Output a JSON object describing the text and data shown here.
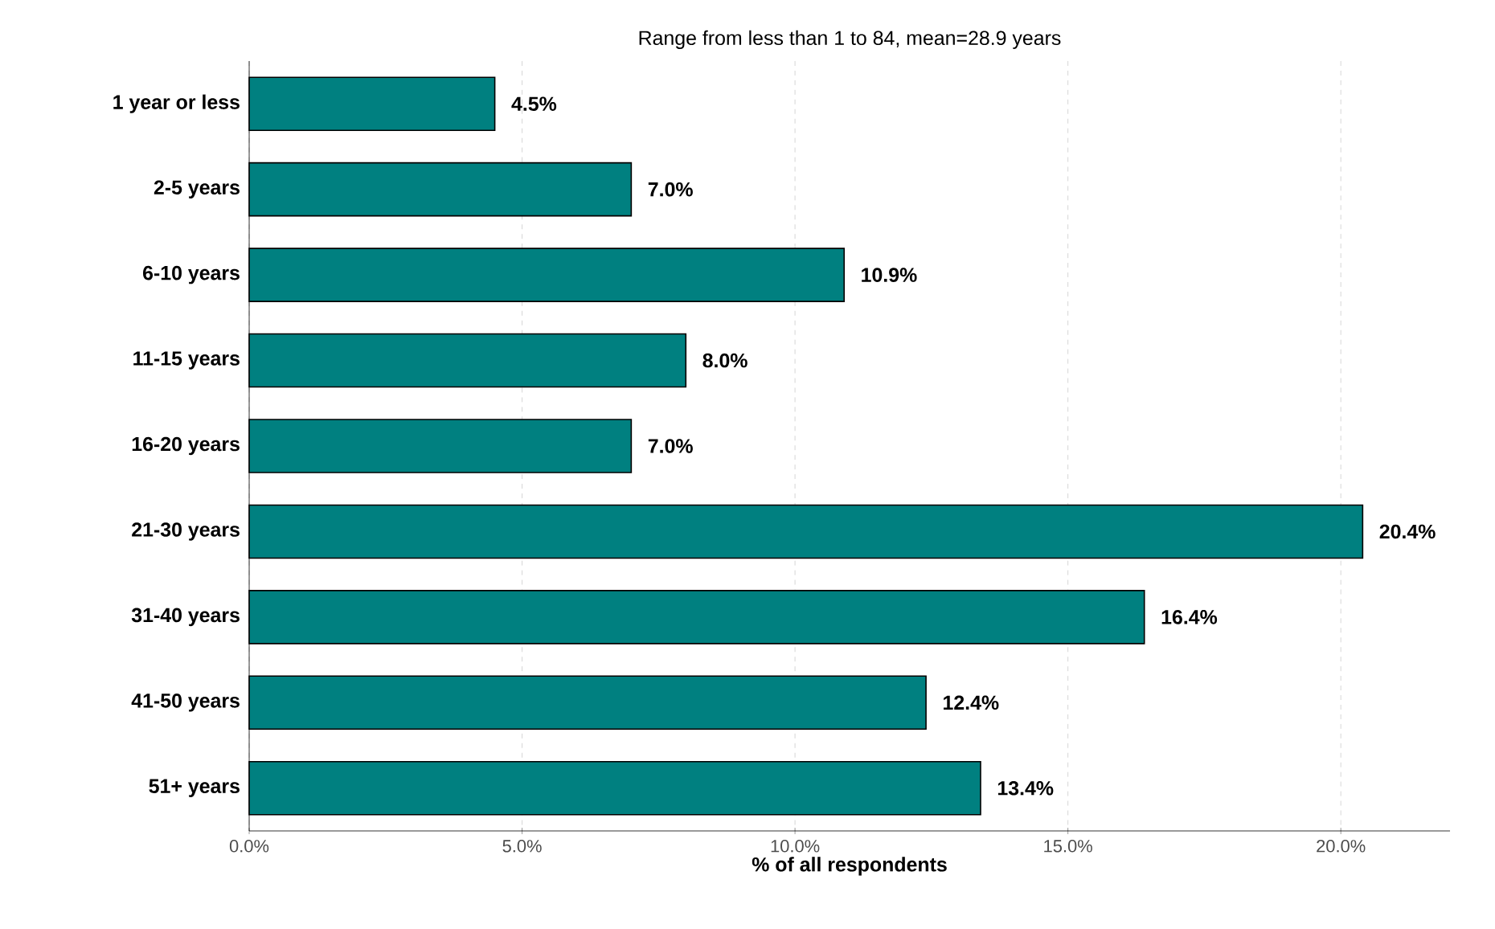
{
  "chart_data": {
    "type": "bar",
    "orientation": "horizontal",
    "title": "Range from less than 1 to 84, mean=28.9 years",
    "xlabel": "% of all respondents",
    "categories": [
      "1 year or less",
      "2-5 years",
      "6-10 years",
      "11-15 years",
      "16-20 years",
      "21-30 years",
      "31-40 years",
      "41-50 years",
      "51+ years"
    ],
    "values": [
      4.5,
      7.0,
      10.9,
      8.0,
      7.0,
      20.4,
      16.4,
      12.4,
      13.4
    ],
    "value_labels": [
      "4.5%",
      "7.0%",
      "10.9%",
      "8.0%",
      "7.0%",
      "20.4%",
      "16.4%",
      "12.4%",
      "13.4%"
    ],
    "color": "#008080",
    "xlim": [
      0,
      22
    ],
    "xticks": [
      {
        "value": 0,
        "label": "0.0%"
      },
      {
        "value": 5,
        "label": "5.0%"
      },
      {
        "value": 10,
        "label": "10.0%"
      },
      {
        "value": 15,
        "label": "15.0%"
      },
      {
        "value": 20,
        "label": "20.0%"
      }
    ],
    "grid": "x"
  }
}
